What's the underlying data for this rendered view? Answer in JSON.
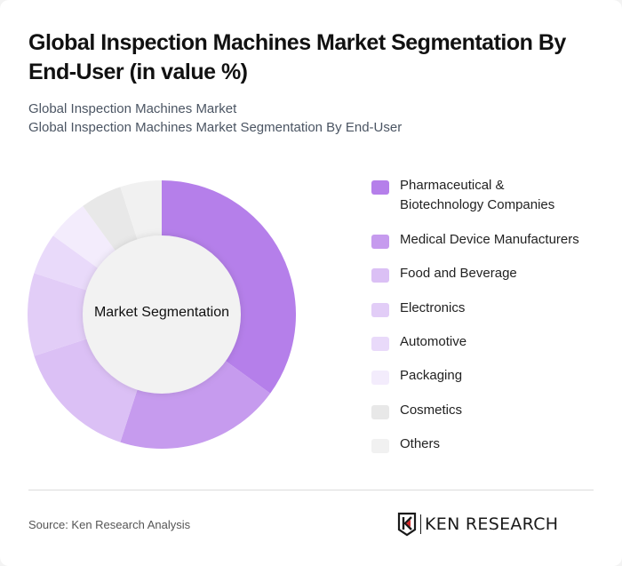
{
  "header": {
    "title": "Global Inspection Machines Market Segmentation By End-User (in value %)",
    "subtitle_line1": "Global Inspection Machines Market",
    "subtitle_line2": "Global Inspection Machines Market Segmentation By End-User"
  },
  "chart": {
    "center_label": "Market Segmentation"
  },
  "legend": {
    "items": [
      {
        "label": "Pharmaceutical & Biotechnology Companies",
        "color": "#b57fea"
      },
      {
        "label": "Medical Device Manufacturers",
        "color": "#c69bee"
      },
      {
        "label": "Food and Beverage",
        "color": "#dbc0f5"
      },
      {
        "label": "Electronics",
        "color": "#e2cdf7"
      },
      {
        "label": "Automotive",
        "color": "#e9dafa"
      },
      {
        "label": "Packaging",
        "color": "#f3ecfc"
      },
      {
        "label": "Cosmetics",
        "color": "#e8e8e8"
      },
      {
        "label": "Others",
        "color": "#f1f1f1"
      }
    ]
  },
  "footer": {
    "source": "Source: Ken Research Analysis",
    "logo_text": "KEN RESEARCH"
  },
  "chart_data": {
    "type": "pie",
    "subtype": "donut",
    "title": "Global Inspection Machines Market Segmentation By End-User (in value %)",
    "center_label": "Market Segmentation",
    "categories": [
      "Pharmaceutical & Biotechnology Companies",
      "Medical Device Manufacturers",
      "Food and Beverage",
      "Electronics",
      "Automotive",
      "Packaging",
      "Cosmetics",
      "Others"
    ],
    "values": [
      35,
      20,
      15,
      10,
      5,
      5,
      5,
      5
    ],
    "colors": [
      "#b57fea",
      "#c69bee",
      "#dbc0f5",
      "#e2cdf7",
      "#e9dafa",
      "#f3ecfc",
      "#e8e8e8",
      "#f1f1f1"
    ],
    "unit": "%",
    "legend_position": "right",
    "start_angle": "12 o'clock, clockwise"
  }
}
